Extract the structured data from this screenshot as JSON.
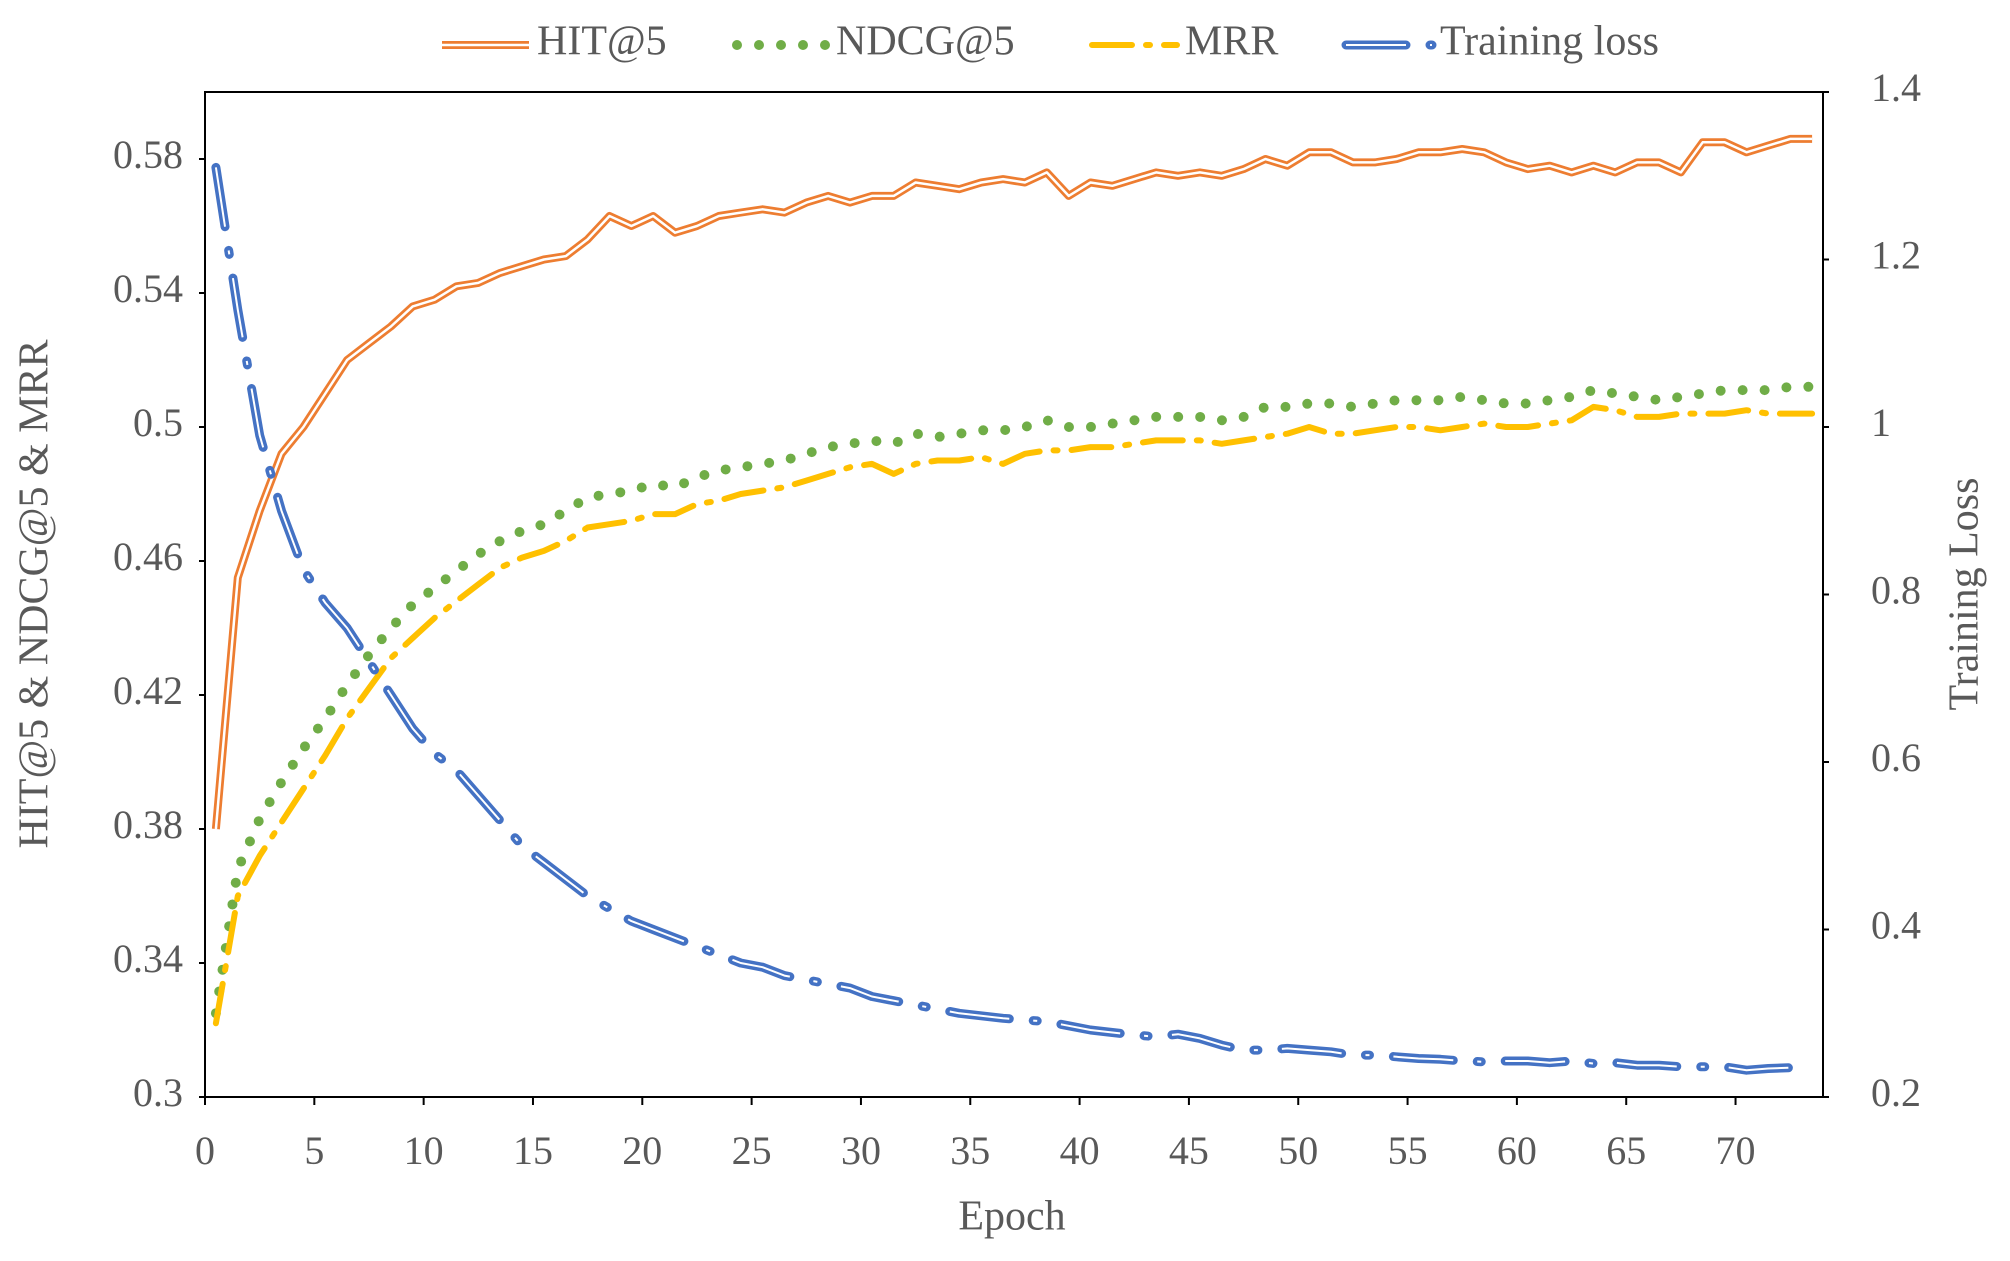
{
  "chart_data": {
    "type": "line",
    "x_label": "Epoch",
    "y_label": "HIT@5 & NDCG@5 & MRR",
    "y2_label": "Training Loss",
    "legend": "top",
    "x": [
      0.5,
      1.5,
      2.5,
      3.5,
      4.5,
      5.5,
      6.5,
      7.5,
      8.5,
      9.5,
      10.5,
      11.5,
      12.5,
      13.5,
      14.5,
      15.5,
      16.5,
      17.5,
      18.5,
      19.5,
      20.5,
      21.5,
      22.5,
      23.5,
      24.5,
      25.5,
      26.5,
      27.5,
      28.5,
      29.5,
      30.5,
      31.5,
      32.5,
      33.5,
      34.5,
      35.5,
      36.5,
      37.5,
      38.5,
      39.5,
      40.5,
      41.5,
      42.5,
      43.5,
      44.5,
      45.5,
      46.5,
      47.5,
      48.5,
      49.5,
      50.5,
      51.5,
      52.5,
      53.5,
      54.5,
      55.5,
      56.5,
      57.5,
      58.5,
      59.5,
      60.5,
      61.5,
      62.5,
      63.5,
      64.5,
      65.5,
      66.5,
      67.5,
      68.5,
      69.5,
      70.5,
      71.5,
      72.5,
      73.5
    ],
    "xlim": [
      0,
      74
    ],
    "xticks": [
      0,
      5,
      10,
      15,
      20,
      25,
      30,
      35,
      40,
      45,
      50,
      55,
      60,
      65,
      70
    ],
    "ylim": [
      0.3,
      0.6
    ],
    "yticks": [
      0.3,
      0.34,
      0.38,
      0.42,
      0.46,
      0.5,
      0.54,
      0.58
    ],
    "y2lim": [
      0.2,
      1.4
    ],
    "y2ticks": [
      0.2,
      0.4,
      0.6,
      0.8,
      1,
      1.2,
      1.4
    ],
    "series": [
      {
        "name": "HIT@5",
        "color": "#ed7d31",
        "style": "double",
        "values": [
          0.38,
          0.455,
          0.475,
          0.492,
          0.5,
          0.51,
          0.52,
          0.525,
          0.53,
          0.536,
          0.538,
          0.542,
          0.543,
          0.546,
          0.548,
          0.55,
          0.551,
          0.556,
          0.563,
          0.56,
          0.563,
          0.558,
          0.56,
          0.563,
          0.564,
          0.565,
          0.564,
          0.567,
          0.569,
          0.567,
          0.569,
          0.569,
          0.573,
          0.572,
          0.571,
          0.573,
          0.574,
          0.573,
          0.576,
          0.569,
          0.573,
          0.572,
          0.574,
          0.576,
          0.575,
          0.576,
          0.575,
          0.577,
          0.58,
          0.578,
          0.582,
          0.582,
          0.579,
          0.579,
          0.58,
          0.582,
          0.582,
          0.583,
          0.582,
          0.579,
          0.577,
          0.578,
          0.576,
          0.578,
          0.576,
          0.579,
          0.579,
          0.576,
          0.585,
          0.585,
          0.582,
          0.584,
          0.586,
          0.586
        ]
      },
      {
        "name": "NDCG@5",
        "color": "#70ad47",
        "style": "dots",
        "values": [
          0.325,
          0.368,
          0.383,
          0.394,
          0.404,
          0.413,
          0.423,
          0.432,
          0.44,
          0.447,
          0.452,
          0.457,
          0.462,
          0.466,
          0.469,
          0.471,
          0.475,
          0.479,
          0.48,
          0.481,
          0.483,
          0.482,
          0.485,
          0.487,
          0.488,
          0.489,
          0.49,
          0.492,
          0.494,
          0.495,
          0.496,
          0.495,
          0.498,
          0.497,
          0.498,
          0.499,
          0.499,
          0.5,
          0.502,
          0.5,
          0.5,
          0.501,
          0.502,
          0.503,
          0.503,
          0.503,
          0.502,
          0.503,
          0.506,
          0.506,
          0.507,
          0.507,
          0.506,
          0.507,
          0.508,
          0.508,
          0.508,
          0.509,
          0.508,
          0.507,
          0.507,
          0.508,
          0.509,
          0.511,
          0.51,
          0.509,
          0.508,
          0.509,
          0.51,
          0.511,
          0.511,
          0.511,
          0.512,
          0.512
        ]
      },
      {
        "name": "MRR",
        "color": "#ffc000",
        "style": "dash",
        "values": [
          0.322,
          0.36,
          0.372,
          0.382,
          0.392,
          0.402,
          0.413,
          0.422,
          0.431,
          0.437,
          0.443,
          0.448,
          0.453,
          0.458,
          0.461,
          0.463,
          0.466,
          0.47,
          0.471,
          0.472,
          0.474,
          0.474,
          0.477,
          0.478,
          0.48,
          0.481,
          0.482,
          0.484,
          0.486,
          0.488,
          0.489,
          0.486,
          0.489,
          0.49,
          0.49,
          0.491,
          0.489,
          0.492,
          0.493,
          0.493,
          0.494,
          0.494,
          0.495,
          0.496,
          0.496,
          0.496,
          0.495,
          0.496,
          0.497,
          0.498,
          0.5,
          0.498,
          0.498,
          0.499,
          0.5,
          0.5,
          0.499,
          0.5,
          0.501,
          0.5,
          0.5,
          0.501,
          0.502,
          0.506,
          0.505,
          0.503,
          0.503,
          0.504,
          0.504,
          0.504,
          0.505,
          0.504,
          0.504,
          0.504
        ]
      },
      {
        "name": "Training loss",
        "color": "#4472c4",
        "style": "doubledash",
        "axis": "y2",
        "values": [
          1.31,
          1.14,
          0.99,
          0.9,
          0.83,
          0.79,
          0.76,
          0.72,
          0.68,
          0.64,
          0.61,
          0.59,
          0.56,
          0.53,
          0.5,
          0.48,
          0.46,
          0.44,
          0.425,
          0.41,
          0.4,
          0.39,
          0.38,
          0.37,
          0.36,
          0.355,
          0.345,
          0.34,
          0.335,
          0.33,
          0.32,
          0.315,
          0.31,
          0.305,
          0.3,
          0.297,
          0.294,
          0.292,
          0.29,
          0.285,
          0.28,
          0.277,
          0.274,
          0.272,
          0.275,
          0.27,
          0.262,
          0.256,
          0.256,
          0.258,
          0.256,
          0.254,
          0.25,
          0.25,
          0.248,
          0.246,
          0.245,
          0.243,
          0.242,
          0.243,
          0.243,
          0.241,
          0.243,
          0.24,
          0.241,
          0.238,
          0.238,
          0.236,
          0.236,
          0.236,
          0.232,
          0.234,
          0.235,
          0.234
        ]
      }
    ]
  }
}
